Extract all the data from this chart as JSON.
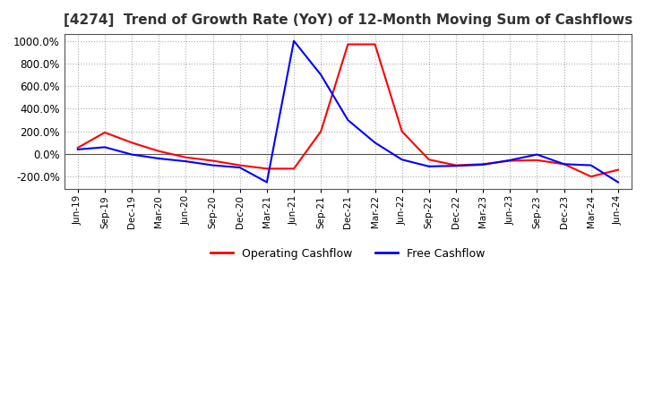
{
  "title": "[4274]  Trend of Growth Rate (YoY) of 12-Month Moving Sum of Cashflows",
  "title_color": "#333333",
  "background_color": "#ffffff",
  "grid_color": "#aaaaaa",
  "ylim": [
    -310,
    1060
  ],
  "yticks": [
    -200,
    0,
    200,
    400,
    600,
    800,
    1000
  ],
  "operating_color": "#ff0000",
  "free_color": "#0000ff",
  "legend_labels": [
    "Operating Cashflow",
    "Free Cashflow"
  ],
  "x_labels": [
    "Jun-19",
    "Sep-19",
    "Dec-19",
    "Mar-20",
    "Jun-20",
    "Sep-20",
    "Dec-20",
    "Mar-21",
    "Jun-21",
    "Sep-21",
    "Dec-21",
    "Mar-22",
    "Jun-22",
    "Sep-22",
    "Dec-22",
    "Mar-23",
    "Jun-23",
    "Sep-23",
    "Dec-23",
    "Mar-24",
    "Jun-24"
  ],
  "operating_cashflow": [
    55,
    190,
    100,
    25,
    -30,
    -60,
    -100,
    -130,
    -130,
    200,
    970,
    970,
    200,
    -50,
    -100,
    -90,
    -60,
    -55,
    -90,
    -200,
    -140
  ],
  "free_cashflow": [
    40,
    60,
    -5,
    -40,
    -65,
    -100,
    -120,
    -250,
    1000,
    700,
    300,
    100,
    -50,
    -110,
    -105,
    -95,
    -55,
    -5,
    -90,
    -100,
    -250
  ]
}
